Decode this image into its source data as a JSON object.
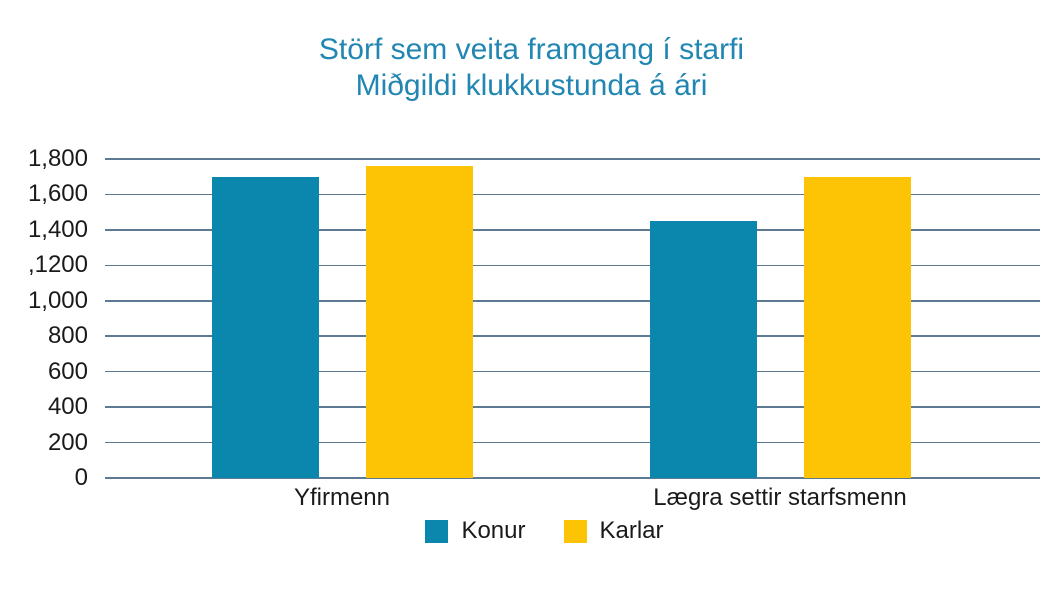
{
  "chart_data": {
    "type": "bar",
    "title": "Störf sem veita framgang í starfi",
    "subtitle": "Miðgildi klukkustunda á ári",
    "categories": [
      "Yfirmenn",
      "Lægra settir starfsmenn"
    ],
    "series": [
      {
        "name": "Konur",
        "color": "#0b86ad",
        "values": [
          1700,
          1450
        ]
      },
      {
        "name": "Karlar",
        "color": "#fdc305",
        "values": [
          1760,
          1700
        ]
      }
    ],
    "ylim": [
      0,
      1800
    ],
    "ytick_step": 200,
    "ytick_labels": [
      "0",
      "200",
      "400",
      "600",
      "800",
      "1,000",
      ",1200",
      "1,400",
      "1,600",
      "1,800"
    ],
    "grid": true,
    "legend_position": "bottom",
    "xlabel": "",
    "ylabel": "",
    "title_color": "#2186b2",
    "gridline_color": "#5d7a92",
    "text_color": "#1a1a1a",
    "background": "#ffffff"
  }
}
